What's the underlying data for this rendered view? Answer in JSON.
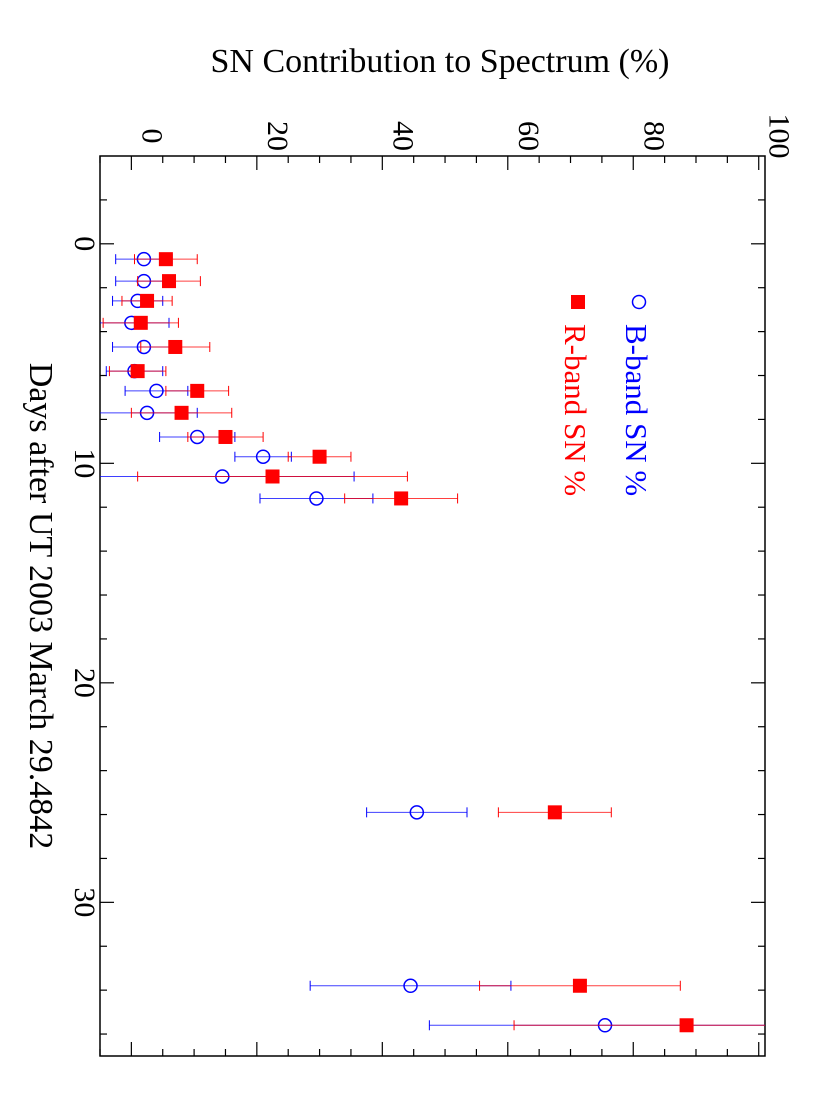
{
  "chart_data": {
    "type": "scatter",
    "title": "",
    "xlabel": "Days after UT 2003 March 29.4842",
    "ylabel": "SN Contribution to Spectrum (%)",
    "xlim": [
      -4,
      37
    ],
    "ylim": [
      -5,
      101
    ],
    "x_ticks": [
      "0",
      "10",
      "20",
      "30"
    ],
    "y_ticks": [
      "0",
      "20",
      "40",
      "60",
      "80",
      "100"
    ],
    "grid": false,
    "legend_position": "top-right",
    "series": [
      {
        "name": "B-band SN %",
        "color": "#0000ff",
        "marker": "open-circle",
        "points": [
          {
            "x": 0.7,
            "y": 2.0,
            "err": 4.5
          },
          {
            "x": 1.7,
            "y": 2.0,
            "err": 4.5
          },
          {
            "x": 2.6,
            "y": 1.0,
            "err": 4.0
          },
          {
            "x": 3.6,
            "y": 0.0,
            "err": 6.0
          },
          {
            "x": 4.7,
            "y": 2.0,
            "err": 5.0
          },
          {
            "x": 5.8,
            "y": 0.5,
            "err": 4.5
          },
          {
            "x": 6.7,
            "y": 4.0,
            "err": 5.0
          },
          {
            "x": 7.7,
            "y": 2.5,
            "err": 8.0
          },
          {
            "x": 8.8,
            "y": 10.5,
            "err": 6.0
          },
          {
            "x": 9.7,
            "y": 21.0,
            "err": 4.5
          },
          {
            "x": 10.6,
            "y": 14.5,
            "err": 21.0
          },
          {
            "x": 11.6,
            "y": 29.5,
            "err": 9.0
          },
          {
            "x": 25.9,
            "y": 45.5,
            "err": 8.0
          },
          {
            "x": 33.8,
            "y": 44.5,
            "err": 16.0
          },
          {
            "x": 35.6,
            "y": 75.5,
            "err": 28.0
          }
        ]
      },
      {
        "name": "R-band SN %",
        "color": "#ff0000",
        "marker": "filled-square",
        "points": [
          {
            "x": 0.7,
            "y": 5.5,
            "err": 5.0
          },
          {
            "x": 1.7,
            "y": 6.0,
            "err": 5.0
          },
          {
            "x": 2.6,
            "y": 2.5,
            "err": 4.0
          },
          {
            "x": 3.6,
            "y": 1.5,
            "err": 6.0
          },
          {
            "x": 4.7,
            "y": 7.0,
            "err": 5.5
          },
          {
            "x": 5.8,
            "y": 1.0,
            "err": 4.5
          },
          {
            "x": 6.7,
            "y": 10.5,
            "err": 5.0
          },
          {
            "x": 7.7,
            "y": 8.0,
            "err": 8.0
          },
          {
            "x": 8.8,
            "y": 15.0,
            "err": 6.0
          },
          {
            "x": 9.7,
            "y": 30.0,
            "err": 5.0
          },
          {
            "x": 10.6,
            "y": 22.5,
            "err": 21.5
          },
          {
            "x": 11.6,
            "y": 43.0,
            "err": 9.0
          },
          {
            "x": 25.9,
            "y": 67.5,
            "err": 9.0
          },
          {
            "x": 33.8,
            "y": 71.5,
            "err": 16.0
          },
          {
            "x": 35.6,
            "y": 88.5,
            "err": 27.5
          }
        ]
      }
    ]
  }
}
